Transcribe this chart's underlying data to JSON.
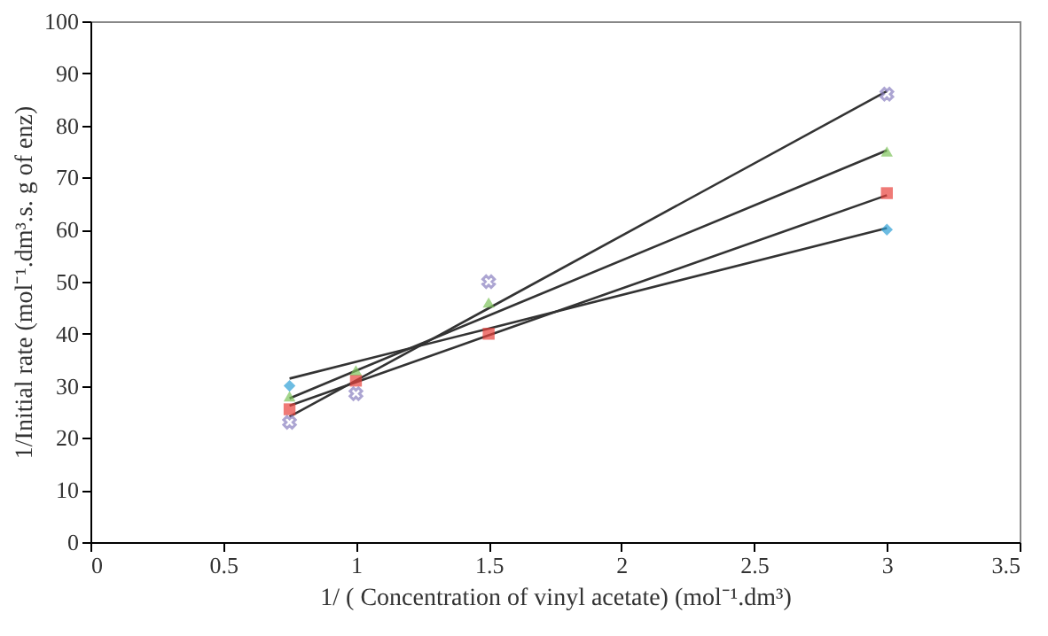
{
  "chart_data": {
    "type": "scatter",
    "xlabel": "1/ ( Concentration of vinyl acetate) (mol⁻¹.dm³)",
    "ylabel": "1/Initial rate (mol⁻¹.dm³.s. g of enz)",
    "x": [
      0.75,
      1,
      1.5,
      3
    ],
    "series": [
      {
        "type": "scatter",
        "marker": "diamond",
        "color": "#2e9fd6",
        "values": [
          30,
          null,
          null,
          60
        ]
      },
      {
        "type": "scatter",
        "marker": "square",
        "color": "#e8413c",
        "values": [
          25.5,
          31,
          40,
          67
        ]
      },
      {
        "type": "scatter",
        "marker": "triangle",
        "color": "#7dc35b",
        "values": [
          28,
          33,
          46,
          75
        ]
      },
      {
        "type": "scatter",
        "marker": "cross",
        "color": "#8a7fc0",
        "values": [
          23,
          28.5,
          50,
          86
        ]
      },
      {
        "type": "line",
        "color": "#333333",
        "values": [
          31.4,
          34.6,
          41.0,
          60.3
        ]
      },
      {
        "type": "line",
        "color": "#333333",
        "values": [
          26.2,
          30.7,
          39.7,
          66.6
        ]
      },
      {
        "type": "line",
        "color": "#333333",
        "values": [
          27.6,
          32.9,
          43.5,
          75.2
        ]
      },
      {
        "type": "line",
        "color": "#333333",
        "values": [
          24.1,
          31.0,
          44.9,
          86.6
        ]
      }
    ],
    "xlim": [
      0,
      3.5
    ],
    "xticks": [
      0,
      0.5,
      1,
      1.5,
      2,
      2.5,
      3,
      3.5
    ],
    "ylim": [
      0,
      100
    ],
    "yticks": [
      0,
      10,
      20,
      30,
      40,
      50,
      60,
      70,
      80,
      90,
      100
    ],
    "grid": false
  }
}
